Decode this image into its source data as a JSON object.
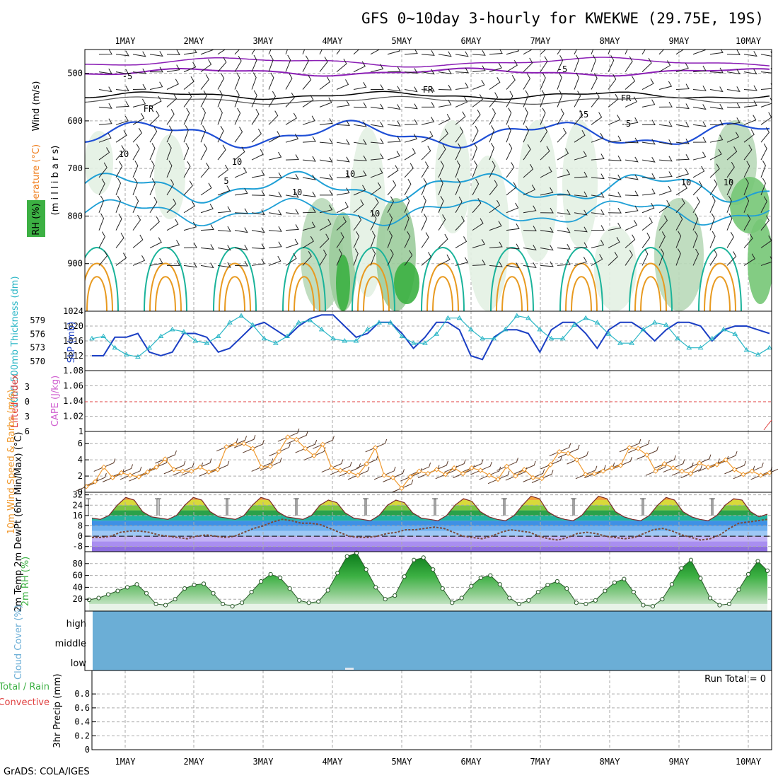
{
  "title": "GFS 0~10day 3-hourly for KWEKWE (29.75E, 19S)",
  "footer": "GrADS: COLA/IGES",
  "date_labels": [
    "1MAY",
    "2MAY",
    "3MAY",
    "4MAY",
    "5MAY",
    "6MAY",
    "7MAY",
    "8MAY",
    "9MAY",
    "10MAY"
  ],
  "colors": {
    "rh_green": "#3cb043",
    "temp_purple": "#8b1fb5",
    "temp_blue": "#1f4fd6",
    "temp_cyan": "#1fa0d6",
    "temp_teal": "#1ab39a",
    "temp_orange": "#e89a20",
    "slp_blue": "#1b3fc4",
    "thickness_cyan": "#2ab6c6",
    "wind_orange": "#f09a30",
    "cape_magenta": "#d060d0",
    "lifted_red": "#e04040",
    "cloud_blue": "#6baed6"
  },
  "chart_data": [
    {
      "type": "heatmap",
      "name": "upper-air",
      "ylabel_parts": [
        "Wind (m/s)",
        "Temperature (°C)",
        "RH (%)"
      ],
      "ylabel_axis": "(m i l l i b a r s)",
      "y_ticks": [
        500,
        600,
        700,
        800,
        900
      ],
      "ylim": [
        1000,
        450
      ],
      "contour_labels": [
        "-5",
        "-5",
        "FR",
        "FR",
        "FR",
        "10",
        "-5",
        "5",
        "10",
        "10",
        "10",
        "15",
        "10",
        "10",
        "10"
      ]
    },
    {
      "type": "line",
      "name": "slp-thickness",
      "ylabel_left": "1000-500mb Thickness (dm)",
      "ylabel_right": "SLP (mb)",
      "left_ticks": [
        570,
        573,
        576,
        579
      ],
      "right_ticks": [
        1012,
        1016,
        1020,
        1024
      ],
      "slp": [
        1012,
        1012,
        1017,
        1017,
        1018,
        1013,
        1012,
        1013,
        1018,
        1018,
        1017,
        1013,
        1014,
        1017,
        1020,
        1021,
        1019,
        1017,
        1020,
        1022,
        1023,
        1023,
        1020,
        1017,
        1018,
        1021,
        1021,
        1018,
        1014,
        1017,
        1021,
        1021,
        1019,
        1012,
        1011,
        1017,
        1019,
        1019,
        1018,
        1013,
        1019,
        1021,
        1021,
        1018,
        1014,
        1019,
        1021,
        1021,
        1019,
        1016,
        1019,
        1021,
        1021,
        1020,
        1016,
        1019,
        1020,
        1020,
        1019,
        1018
      ],
      "thickness": [
        575,
        575.5,
        573,
        571.5,
        571,
        573,
        575.5,
        577,
        576.5,
        574.5,
        574,
        575.5,
        578.5,
        580,
        578,
        575,
        574,
        575.5,
        578.5,
        579,
        577,
        575,
        574.5,
        574.5,
        577,
        578.5,
        578.5,
        575.5,
        574,
        574,
        576,
        579.5,
        579.5,
        577,
        575,
        575,
        577,
        580,
        579.5,
        577,
        575,
        575,
        578,
        579.5,
        578.5,
        576,
        574,
        574,
        577,
        578.5,
        578,
        575,
        573,
        573,
        575,
        577,
        576,
        572.5,
        571.5,
        573
      ]
    },
    {
      "type": "line",
      "name": "cape-lifted",
      "ylabel_left": "Lifted Index",
      "ylabel_right": "CAPE (J/kg)",
      "left_ticks": [
        -3,
        0,
        3,
        6
      ],
      "right_ticks": [
        1,
        1.02,
        1.04,
        1.06,
        1.08
      ],
      "ylim": [
        1,
        1.08
      ],
      "lifted_index_zero_line": 0
    },
    {
      "type": "line",
      "name": "wind10m",
      "ylabel": "10m Wind Speed & Barbs (m/s)",
      "y_ticks": [
        0,
        2,
        4,
        6
      ],
      "ylim": [
        0,
        7.5
      ],
      "values": [
        0.7,
        1.3,
        3.1,
        1.8,
        2.4,
        2.1,
        1.9,
        2.5,
        3.1,
        4.1,
        2.8,
        2.6,
        2.6,
        3.1,
        2.5,
        2.8,
        5.6,
        5.9,
        6.0,
        5.4,
        3.1,
        3.2,
        5.0,
        6.8,
        6.5,
        5.4,
        4.5,
        5.9,
        3.0,
        2.7,
        2.5,
        2.1,
        3.5,
        5.5,
        2.1,
        1.8,
        0.5,
        1.9,
        2.6,
        2.3,
        2.8,
        2.2,
        3.0,
        2.3,
        3.0,
        2.7,
        2.1,
        1.6,
        3.2,
        2.0,
        2.8,
        1.8,
        1.7,
        3.4,
        5.0,
        4.8,
        4.0,
        2.2,
        2.3,
        2.6,
        3.0,
        3.3,
        5.5,
        5.4,
        4.6,
        2.6,
        3.5,
        3.0,
        2.6,
        2.3,
        3.6,
        3.1,
        3.4,
        4.0,
        2.8,
        2.2,
        2.6,
        2.1,
        2.4
      ]
    },
    {
      "type": "area",
      "name": "temperature",
      "ylabel": "2m Temp 2m DewPt (6hr Min/Max) (°C)",
      "y_ticks": [
        -8,
        0,
        8,
        16,
        24,
        32
      ],
      "ylim": [
        -12,
        34
      ],
      "temp": [
        14,
        13,
        16,
        24,
        30,
        28,
        19,
        15,
        14,
        13,
        16,
        24,
        30,
        28,
        19,
        15,
        14,
        13,
        16,
        24,
        30,
        28,
        19,
        15,
        14,
        13,
        16,
        24,
        28,
        26,
        18,
        14,
        13,
        12,
        16,
        24,
        28,
        26,
        18,
        14,
        13,
        12,
        16,
        24,
        29,
        27,
        19,
        15,
        13,
        12,
        16,
        24,
        31,
        29,
        19,
        15,
        13,
        12,
        16,
        24,
        31,
        29,
        19,
        15,
        13,
        12,
        16,
        24,
        30,
        28,
        19,
        15,
        13,
        12,
        16,
        24,
        29,
        28,
        19,
        15,
        17
      ],
      "dewpoint": [
        -1,
        -1,
        0,
        3,
        4,
        4,
        3,
        1,
        0,
        -1,
        -2,
        0,
        1,
        0,
        -1,
        0,
        3,
        6,
        8,
        11,
        13,
        12,
        10,
        10,
        9,
        6,
        3,
        0,
        -1,
        -1,
        0,
        2,
        3,
        5,
        5,
        6,
        7,
        6,
        3,
        0,
        -1,
        -2,
        0,
        3,
        5,
        4,
        3,
        0,
        -2,
        -3,
        -1,
        2,
        3,
        2,
        0,
        -1,
        -2,
        -1,
        2,
        5,
        6,
        4,
        1,
        -1,
        -3,
        -2,
        1,
        6,
        10,
        11,
        12,
        13
      ]
    },
    {
      "type": "area",
      "name": "relative-humidity",
      "ylabel": "2m RH (%)",
      "y_ticks": [
        20,
        40,
        60,
        80
      ],
      "ylim": [
        0,
        100
      ],
      "values": [
        19,
        22,
        28,
        34,
        40,
        45,
        30,
        12,
        10,
        20,
        38,
        44,
        46,
        30,
        12,
        8,
        14,
        32,
        50,
        62,
        56,
        38,
        18,
        14,
        16,
        35,
        64,
        92,
        98,
        70,
        40,
        20,
        26,
        58,
        86,
        90,
        70,
        38,
        14,
        22,
        42,
        56,
        60,
        45,
        22,
        12,
        18,
        32,
        44,
        50,
        38,
        14,
        12,
        18,
        34,
        48,
        54,
        32,
        10,
        8,
        20,
        45,
        72,
        86,
        55,
        22,
        10,
        12,
        36,
        62,
        84,
        68
      ],
      "fill_color": "#3cb043"
    },
    {
      "type": "heatmap",
      "name": "cloud-cover",
      "ylabel": "Cloud Cover (%)",
      "levels": [
        "high",
        "middle",
        "low"
      ],
      "fill_color": "#6baed6"
    },
    {
      "type": "bar",
      "name": "precipitation",
      "ylabel": "3hr Precip (mm)",
      "legend": [
        "Total / Rain",
        "Convective"
      ],
      "run_total_label": "Run Total = 0",
      "y_ticks": [
        0,
        0.2,
        0.4,
        0.6,
        0.8
      ],
      "ylim": [
        0,
        1
      ],
      "values": []
    }
  ]
}
